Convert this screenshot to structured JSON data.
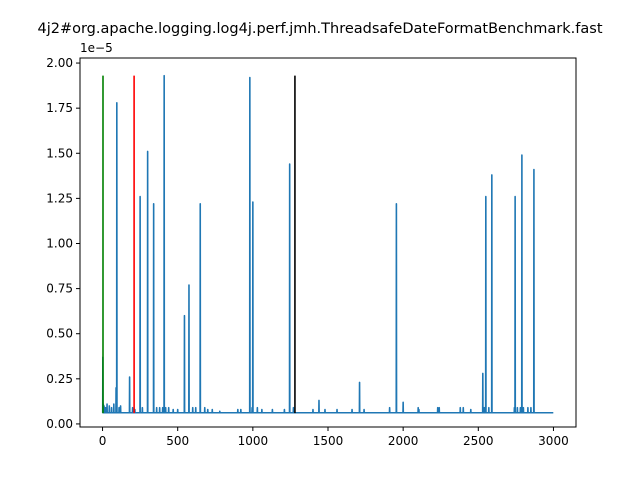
{
  "chart_data": {
    "type": "line",
    "title": "4j2#org.apache.logging.log4j.perf.jmh.ThreadsafeDateFormatBenchmark.fast",
    "xlabel": "",
    "ylabel": "",
    "y_scale_label": "1e−5",
    "xlim": [
      -150,
      3150
    ],
    "ylim": [
      -1.7e-07,
      2.028e-05
    ],
    "x_ticks": [
      0,
      500,
      1000,
      1500,
      2000,
      2500,
      3000
    ],
    "x_tick_labels": [
      "0",
      "500",
      "1000",
      "1500",
      "2000",
      "2500",
      "3000"
    ],
    "y_ticks": [
      0,
      2.5e-06,
      5e-06,
      7.5e-06,
      1e-05,
      1.25e-05,
      1.5e-05,
      1.75e-05,
      2e-05
    ],
    "y_tick_labels": [
      "0.00",
      "0.25",
      "0.50",
      "0.75",
      "1.00",
      "1.25",
      "1.50",
      "1.75",
      "2.00"
    ],
    "grid": false,
    "colors": {
      "series": "#1f77b4",
      "green": "#008000",
      "red": "#ff0000",
      "black": "#000000"
    },
    "series": [
      {
        "baseline": 6.2e-07,
        "x_max": 2999,
        "spikes": [
          [
            2,
            3.7e-06
          ],
          [
            5,
            1.1e-06
          ],
          [
            10,
            1e-06
          ],
          [
            20,
            9e-07
          ],
          [
            30,
            1.1e-06
          ],
          [
            45,
            1e-06
          ],
          [
            60,
            9e-07
          ],
          [
            75,
            1.1e-06
          ],
          [
            90,
            2e-06
          ],
          [
            95,
            1.78e-05
          ],
          [
            110,
            9e-07
          ],
          [
            120,
            1e-06
          ],
          [
            180,
            2.6e-06
          ],
          [
            200,
            9e-07
          ],
          [
            215,
            8e-07
          ],
          [
            250,
            1.26e-05
          ],
          [
            265,
            9e-07
          ],
          [
            300,
            1.51e-05
          ],
          [
            340,
            1.22e-05
          ],
          [
            360,
            9e-07
          ],
          [
            380,
            9e-07
          ],
          [
            400,
            9e-07
          ],
          [
            410,
            1.93e-05
          ],
          [
            420,
            9e-07
          ],
          [
            440,
            9e-07
          ],
          [
            470,
            8e-07
          ],
          [
            500,
            8e-07
          ],
          [
            545,
            6e-06
          ],
          [
            575,
            7.7e-06
          ],
          [
            600,
            9e-07
          ],
          [
            620,
            9e-07
          ],
          [
            650,
            1.22e-05
          ],
          [
            680,
            9e-07
          ],
          [
            700,
            8e-07
          ],
          [
            730,
            8e-07
          ],
          [
            780,
            7e-07
          ],
          [
            900,
            8e-07
          ],
          [
            920,
            8e-07
          ],
          [
            980,
            1.92e-05
          ],
          [
            995,
            9e-07
          ],
          [
            1000,
            1.23e-05
          ],
          [
            1030,
            9e-07
          ],
          [
            1060,
            8e-07
          ],
          [
            1130,
            8e-07
          ],
          [
            1210,
            8e-07
          ],
          [
            1245,
            1.44e-05
          ],
          [
            1270,
            9e-07
          ],
          [
            1400,
            8e-07
          ],
          [
            1440,
            1.3e-06
          ],
          [
            1480,
            8e-07
          ],
          [
            1560,
            8e-07
          ],
          [
            1660,
            8e-07
          ],
          [
            1710,
            2.3e-06
          ],
          [
            1740,
            8e-07
          ],
          [
            1910,
            9e-07
          ],
          [
            1955,
            1.22e-05
          ],
          [
            2000,
            1.2e-06
          ],
          [
            2100,
            9e-07
          ],
          [
            2105,
            8e-07
          ],
          [
            2230,
            9e-07
          ],
          [
            2240,
            9e-07
          ],
          [
            2380,
            9e-07
          ],
          [
            2400,
            9e-07
          ],
          [
            2450,
            8e-07
          ],
          [
            2530,
            2.8e-06
          ],
          [
            2540,
            9e-07
          ],
          [
            2550,
            1.26e-05
          ],
          [
            2570,
            9e-07
          ],
          [
            2590,
            1.38e-05
          ],
          [
            2740,
            9e-07
          ],
          [
            2745,
            1.26e-05
          ],
          [
            2760,
            9e-07
          ],
          [
            2780,
            9e-07
          ],
          [
            2790,
            1.49e-05
          ],
          [
            2800,
            9e-07
          ],
          [
            2830,
            9e-07
          ],
          [
            2850,
            9e-07
          ],
          [
            2870,
            1.41e-05
          ]
        ]
      }
    ],
    "vlines": [
      {
        "x": 3,
        "color": "green",
        "y0": 6e-07,
        "y1": 1.93e-05
      },
      {
        "x": 210,
        "color": "red",
        "y0": 6e-07,
        "y1": 1.93e-05
      },
      {
        "x": 1280,
        "color": "black",
        "y0": 6e-07,
        "y1": 1.93e-05
      }
    ]
  }
}
